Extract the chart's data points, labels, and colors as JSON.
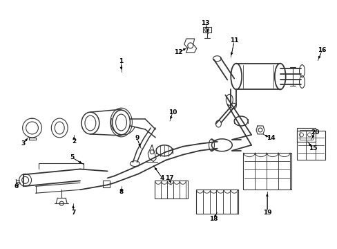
{
  "bg_color": "#ffffff",
  "line_color": "#333333",
  "fig_width": 4.89,
  "fig_height": 3.6,
  "dpi": 100,
  "labels": [
    [
      1,
      175,
      298,
      175,
      285
    ],
    [
      2,
      108,
      298,
      108,
      285
    ],
    [
      3,
      35,
      318,
      44,
      306
    ],
    [
      4,
      228,
      248,
      213,
      242
    ],
    [
      5,
      105,
      218,
      130,
      228
    ],
    [
      6,
      32,
      267,
      44,
      263
    ],
    [
      7,
      108,
      298,
      115,
      285
    ],
    [
      8,
      175,
      278,
      175,
      268
    ],
    [
      9,
      198,
      218,
      208,
      228
    ],
    [
      10,
      248,
      198,
      258,
      212
    ],
    [
      11,
      338,
      55,
      338,
      72
    ],
    [
      12,
      258,
      55,
      268,
      70
    ],
    [
      13,
      298,
      28,
      298,
      48
    ],
    [
      14,
      368,
      198,
      355,
      200
    ],
    [
      15,
      448,
      218,
      435,
      212
    ],
    [
      16,
      465,
      68,
      458,
      82
    ],
    [
      17,
      248,
      288,
      258,
      278
    ],
    [
      18,
      308,
      318,
      308,
      305
    ],
    [
      19,
      378,
      248,
      378,
      232
    ],
    [
      20,
      455,
      178,
      448,
      188
    ]
  ]
}
